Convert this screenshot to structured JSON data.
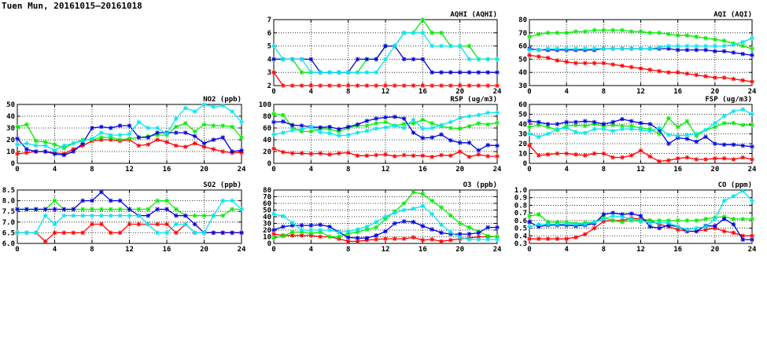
{
  "page": {
    "title": "Tuen Mun, 20161015–20161018"
  },
  "colors": {
    "red": "#ff0000",
    "green": "#00ee00",
    "blue": "#0000dd",
    "cyan": "#00e5ee",
    "grid": "#000000"
  },
  "chart_data": [
    {
      "id": "aqhi",
      "type": "line",
      "title": "AQHI (AQHI)",
      "x_ticks": [
        0,
        4,
        8,
        12,
        16,
        20,
        24
      ],
      "y_ticks": [
        2,
        3,
        4,
        5,
        6,
        7
      ],
      "ylim": [
        2,
        7
      ],
      "xlim": [
        0,
        24
      ],
      "grid": true,
      "series": [
        {
          "color": "red",
          "values": [
            3,
            2,
            2,
            2,
            2,
            2,
            2,
            2,
            2,
            2,
            2,
            2,
            2,
            2,
            2,
            2,
            2,
            2,
            2,
            2,
            2,
            2,
            2,
            2,
            2
          ]
        },
        {
          "color": "green",
          "values": [
            4,
            4,
            4,
            3,
            3,
            3,
            3,
            3,
            3,
            3,
            4,
            4,
            5,
            5,
            6,
            6,
            7,
            6,
            6,
            5,
            5,
            5,
            4,
            4,
            4
          ]
        },
        {
          "color": "blue",
          "values": [
            4,
            4,
            4,
            4,
            4,
            3,
            3,
            3,
            3,
            4,
            4,
            4,
            5,
            5,
            4,
            4,
            4,
            3,
            3,
            3,
            3,
            3,
            3,
            3,
            3
          ]
        },
        {
          "color": "cyan",
          "values": [
            5,
            4,
            4,
            4,
            3,
            3,
            3,
            3,
            3,
            3,
            3,
            3,
            4,
            5,
            6,
            6,
            6,
            5,
            5,
            5,
            5,
            4,
            4,
            4,
            4
          ]
        }
      ]
    },
    {
      "id": "aqi",
      "type": "line",
      "title": "AQI (AQI)",
      "x_ticks": [
        0,
        4,
        8,
        12,
        16,
        20,
        24
      ],
      "y_ticks": [
        30,
        40,
        50,
        60,
        70,
        80
      ],
      "ylim": [
        30,
        80
      ],
      "xlim": [
        0,
        24
      ],
      "grid": true,
      "series": [
        {
          "color": "red",
          "values": [
            53,
            52,
            51,
            49,
            48,
            47,
            47,
            47,
            47,
            46,
            45,
            44,
            43,
            42,
            41,
            40,
            40,
            39,
            38,
            37,
            36,
            36,
            35,
            34,
            33
          ]
        },
        {
          "color": "green",
          "values": [
            67,
            69,
            70,
            70,
            70,
            71,
            71,
            72,
            72,
            72,
            72,
            71,
            71,
            70,
            70,
            69,
            68,
            68,
            67,
            66,
            65,
            64,
            62,
            60,
            58
          ]
        },
        {
          "color": "blue",
          "values": [
            58,
            57,
            57,
            57,
            57,
            57,
            57,
            57,
            58,
            58,
            58,
            58,
            58,
            58,
            58,
            58,
            57,
            57,
            57,
            57,
            56,
            56,
            55,
            54,
            53
          ]
        },
        {
          "color": "cyan",
          "values": [
            57,
            57,
            58,
            58,
            58,
            58,
            58,
            58,
            58,
            58,
            58,
            58,
            58,
            58,
            59,
            60,
            60,
            60,
            60,
            60,
            60,
            60,
            61,
            63,
            66
          ]
        }
      ]
    },
    {
      "id": "no2",
      "type": "line",
      "title": "NO2 (ppb)",
      "x_ticks": [
        0,
        4,
        8,
        12,
        16,
        20,
        24
      ],
      "y_ticks": [
        0,
        10,
        20,
        30,
        40,
        50
      ],
      "ylim": [
        0,
        50
      ],
      "xlim": [
        0,
        24
      ],
      "grid": true,
      "series": [
        {
          "color": "red",
          "values": [
            8,
            9,
            10,
            10,
            9,
            8,
            12,
            15,
            19,
            20,
            20,
            19,
            20,
            15,
            16,
            20,
            18,
            15,
            14,
            17,
            14,
            12,
            10,
            9,
            9
          ]
        },
        {
          "color": "green",
          "values": [
            31,
            33,
            19,
            18,
            16,
            13,
            17,
            20,
            20,
            22,
            22,
            20,
            21,
            22,
            23,
            24,
            24,
            31,
            34,
            27,
            33,
            32,
            32,
            31,
            22
          ]
        },
        {
          "color": "blue",
          "values": [
            21,
            12,
            10,
            10,
            8,
            7,
            10,
            17,
            30,
            31,
            30,
            32,
            32,
            22,
            22,
            26,
            26,
            26,
            26,
            23,
            17,
            20,
            22,
            10,
            11
          ]
        },
        {
          "color": "cyan",
          "values": [
            16,
            17,
            15,
            15,
            11,
            15,
            17,
            19,
            21,
            26,
            24,
            24,
            25,
            35,
            30,
            30,
            25,
            38,
            47,
            44,
            50,
            48,
            49,
            44,
            35
          ]
        }
      ]
    },
    {
      "id": "rsp",
      "type": "line",
      "title": "RSP (ug/m3)",
      "x_ticks": [
        0,
        4,
        8,
        12,
        16,
        20,
        24
      ],
      "y_ticks": [
        0,
        20,
        40,
        60,
        80,
        100
      ],
      "ylim": [
        0,
        100
      ],
      "xlim": [
        0,
        24
      ],
      "grid": true,
      "series": [
        {
          "color": "red",
          "values": [
            25,
            19,
            17,
            17,
            16,
            17,
            15,
            17,
            18,
            13,
            13,
            14,
            15,
            12,
            14,
            13,
            13,
            11,
            14,
            13,
            20,
            11,
            15,
            12,
            12
          ]
        },
        {
          "color": "green",
          "values": [
            84,
            82,
            61,
            54,
            54,
            59,
            58,
            54,
            60,
            64,
            64,
            68,
            70,
            64,
            67,
            68,
            74,
            68,
            63,
            60,
            59,
            63,
            68,
            66,
            69
          ]
        },
        {
          "color": "blue",
          "values": [
            70,
            71,
            65,
            64,
            62,
            61,
            62,
            58,
            62,
            66,
            72,
            76,
            78,
            79,
            76,
            52,
            43,
            44,
            49,
            39,
            35,
            35,
            22,
            31,
            30
          ]
        },
        {
          "color": "cyan",
          "values": [
            49,
            52,
            56,
            58,
            62,
            53,
            51,
            47,
            48,
            52,
            55,
            59,
            61,
            64,
            60,
            74,
            59,
            60,
            65,
            70,
            77,
            80,
            82,
            86,
            86
          ]
        }
      ]
    },
    {
      "id": "fsp",
      "type": "line",
      "title": "FSP (ug/m3)",
      "x_ticks": [
        0,
        4,
        8,
        12,
        16,
        20,
        24
      ],
      "y_ticks": [
        0,
        10,
        20,
        30,
        40,
        50,
        60
      ],
      "ylim": [
        0,
        60
      ],
      "xlim": [
        0,
        24
      ],
      "grid": true,
      "series": [
        {
          "color": "red",
          "values": [
            18,
            8,
            9,
            10,
            10,
            9,
            8,
            10,
            10,
            6,
            6,
            8,
            13,
            7,
            2,
            3,
            5,
            6,
            4,
            4,
            5,
            5,
            4,
            6,
            4
          ]
        },
        {
          "color": "green",
          "values": [
            37,
            39,
            37,
            34,
            38,
            39,
            38,
            40,
            38,
            39,
            38,
            38,
            36,
            35,
            30,
            46,
            37,
            43,
            28,
            34,
            37,
            41,
            41,
            39,
            39
          ]
        },
        {
          "color": "blue",
          "values": [
            43,
            42,
            40,
            40,
            42,
            42,
            43,
            42,
            40,
            42,
            45,
            43,
            41,
            40,
            34,
            20,
            26,
            25,
            22,
            27,
            20,
            19,
            19,
            18,
            17
          ]
        },
        {
          "color": "cyan",
          "values": [
            30,
            27,
            30,
            35,
            36,
            32,
            31,
            35,
            35,
            33,
            35,
            35,
            34,
            33,
            36,
            29,
            28,
            29,
            30,
            34,
            41,
            48,
            53,
            55,
            50
          ]
        }
      ]
    },
    {
      "id": "so2",
      "type": "line",
      "title": "SO2 (ppb)",
      "x_ticks": [
        0,
        4,
        8,
        12,
        16,
        20,
        24
      ],
      "y_ticks": [
        6.0,
        6.5,
        7.0,
        7.5,
        8.0,
        8.5
      ],
      "ylim": [
        6.0,
        8.5
      ],
      "xlim": [
        0,
        24
      ],
      "grid": true,
      "series": [
        {
          "color": "red",
          "values": [
            6.5,
            6.5,
            6.5,
            6.1,
            6.5,
            6.5,
            6.5,
            6.5,
            6.9,
            6.9,
            6.5,
            6.5,
            6.9,
            6.9,
            6.9,
            6.9,
            6.9,
            6.5,
            6.9,
            6.5,
            6.5,
            6.5,
            6.5,
            6.5,
            6.5
          ]
        },
        {
          "color": "green",
          "values": [
            7.6,
            7.6,
            7.6,
            7.6,
            8.0,
            7.6,
            7.6,
            7.6,
            7.6,
            7.6,
            7.6,
            7.6,
            7.6,
            7.6,
            7.6,
            8.0,
            8.0,
            7.6,
            7.3,
            7.3,
            7.3,
            7.3,
            7.3,
            7.6,
            7.6
          ]
        },
        {
          "color": "blue",
          "values": [
            7.6,
            7.6,
            7.6,
            7.6,
            7.6,
            7.6,
            7.6,
            8.0,
            8.0,
            8.4,
            8.0,
            8.0,
            7.6,
            7.3,
            7.3,
            7.6,
            7.6,
            7.3,
            7.3,
            6.9,
            6.5,
            6.5,
            6.5,
            6.5,
            6.5
          ]
        },
        {
          "color": "cyan",
          "values": [
            6.5,
            6.5,
            6.5,
            7.3,
            6.9,
            7.3,
            7.3,
            7.3,
            7.3,
            7.3,
            7.3,
            7.3,
            7.3,
            7.3,
            6.9,
            6.5,
            6.5,
            6.9,
            6.9,
            6.5,
            6.5,
            7.3,
            8.0,
            8.0,
            7.6
          ]
        }
      ]
    },
    {
      "id": "o3",
      "type": "line",
      "title": "O3 (ppb)",
      "x_ticks": [
        0,
        4,
        8,
        12,
        16,
        20,
        24
      ],
      "y_ticks": [
        0,
        10,
        20,
        30,
        40,
        50,
        60,
        70,
        80
      ],
      "ylim": [
        0,
        80
      ],
      "xlim": [
        0,
        24
      ],
      "grid": true,
      "series": [
        {
          "color": "red",
          "values": [
            14,
            12,
            12,
            12,
            12,
            10,
            10,
            7,
            3,
            3,
            5,
            6,
            7,
            7,
            7,
            9,
            5,
            6,
            3,
            5,
            7,
            8,
            10,
            10,
            10
          ]
        },
        {
          "color": "green",
          "values": [
            8,
            11,
            17,
            17,
            15,
            17,
            10,
            10,
            15,
            17,
            21,
            24,
            37,
            48,
            60,
            77,
            74,
            64,
            54,
            42,
            30,
            24,
            18,
            11,
            10
          ]
        },
        {
          "color": "blue",
          "values": [
            20,
            25,
            27,
            27,
            27,
            28,
            25,
            17,
            9,
            8,
            8,
            12,
            18,
            30,
            33,
            32,
            26,
            21,
            16,
            14,
            14,
            14,
            16,
            24,
            24
          ]
        },
        {
          "color": "cyan",
          "values": [
            44,
            41,
            31,
            20,
            20,
            20,
            20,
            17,
            18,
            21,
            25,
            32,
            40,
            46,
            50,
            52,
            56,
            44,
            28,
            17,
            9,
            6,
            6,
            6,
            6
          ]
        }
      ]
    },
    {
      "id": "co",
      "type": "line",
      "title": "CO (ppm)",
      "x_ticks": [
        0,
        4,
        8,
        12,
        16,
        20,
        24
      ],
      "y_ticks": [
        0.3,
        0.4,
        0.5,
        0.6,
        0.7,
        0.8,
        0.9,
        1.0
      ],
      "ylim": [
        0.3,
        1.0
      ],
      "xlim": [
        0,
        24
      ],
      "grid": true,
      "series": [
        {
          "color": "red",
          "values": [
            0.36,
            0.36,
            0.36,
            0.36,
            0.36,
            0.38,
            0.42,
            0.5,
            0.59,
            0.6,
            0.6,
            0.63,
            0.62,
            0.6,
            0.55,
            0.52,
            0.48,
            0.46,
            0.46,
            0.48,
            0.5,
            0.46,
            0.44,
            0.4,
            0.4
          ]
        },
        {
          "color": "green",
          "values": [
            0.66,
            0.68,
            0.58,
            0.58,
            0.58,
            0.56,
            0.57,
            0.58,
            0.64,
            0.6,
            0.58,
            0.6,
            0.59,
            0.6,
            0.6,
            0.6,
            0.6,
            0.6,
            0.6,
            0.62,
            0.64,
            0.65,
            0.62,
            0.62,
            0.62
          ]
        },
        {
          "color": "blue",
          "values": [
            0.58,
            0.52,
            0.54,
            0.54,
            0.54,
            0.53,
            0.54,
            0.56,
            0.68,
            0.7,
            0.68,
            0.69,
            0.66,
            0.52,
            0.5,
            0.54,
            0.52,
            0.46,
            0.46,
            0.53,
            0.53,
            0.62,
            0.55,
            0.35,
            0.35
          ]
        },
        {
          "color": "cyan",
          "values": [
            0.52,
            0.55,
            0.55,
            0.55,
            0.56,
            0.55,
            0.55,
            0.58,
            0.62,
            0.66,
            0.65,
            0.62,
            0.6,
            0.57,
            0.57,
            0.57,
            0.52,
            0.48,
            0.5,
            0.52,
            0.62,
            0.86,
            0.92,
            0.99,
            0.86
          ]
        }
      ]
    }
  ]
}
